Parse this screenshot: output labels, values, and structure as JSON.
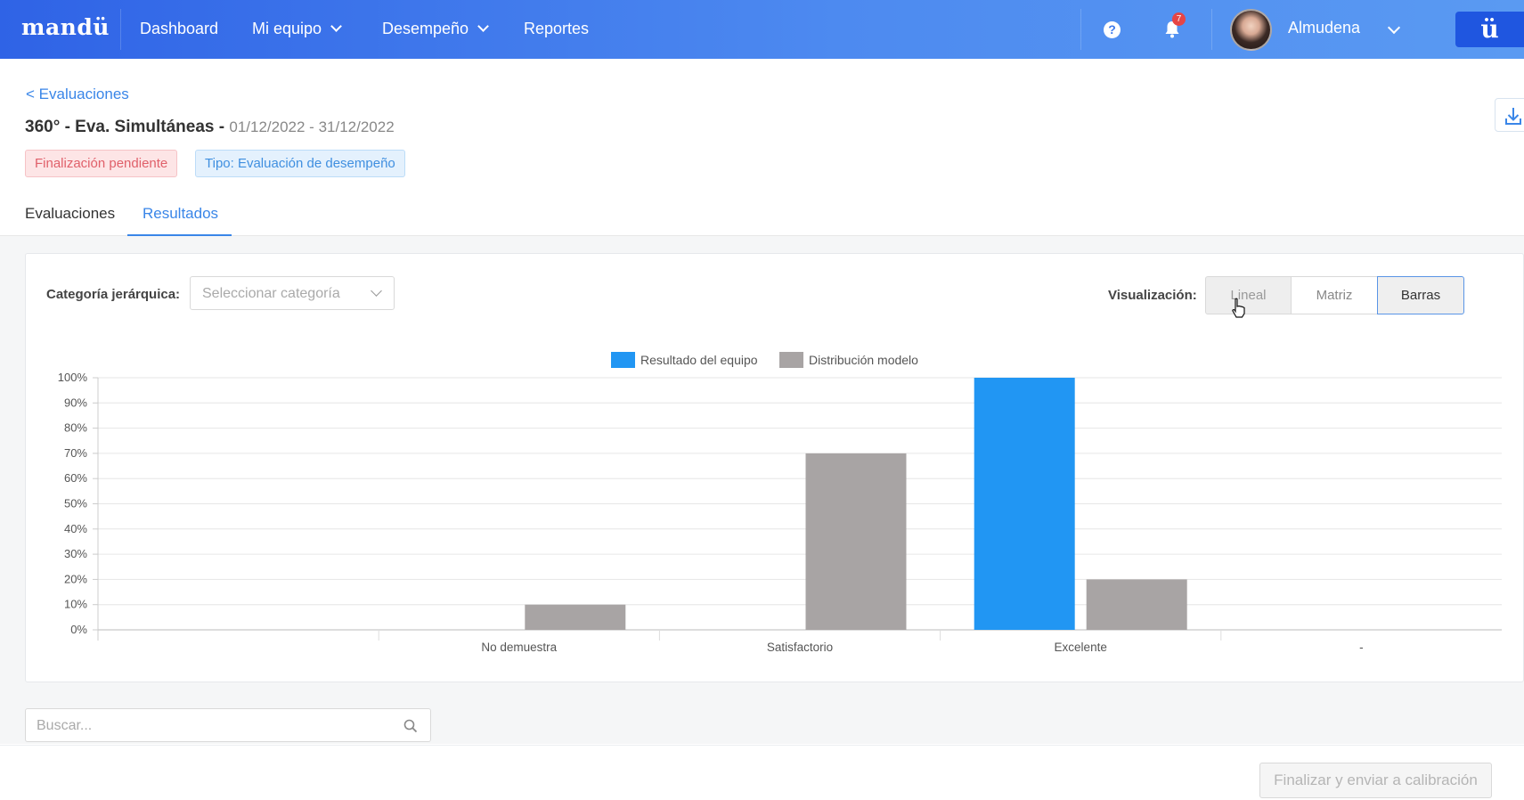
{
  "nav": {
    "brand": "mandü",
    "items": [
      "Dashboard",
      "Mi equipo",
      "Desempeño",
      "Reportes"
    ],
    "notifications_count": "7",
    "username": "Almudena",
    "app_button": "ü",
    "help_icon": "question-circle-icon",
    "bell_icon": "bell-icon",
    "gradient_start": "#2f63e6",
    "gradient_end": "#5a9af2"
  },
  "header": {
    "back_link": "< Evaluaciones",
    "title": "360° - Eva. Simultáneas -",
    "dates": "01/12/2022 - 31/12/2022",
    "badges": [
      "Finalización pendiente",
      "Tipo: Evaluación de desempeño"
    ],
    "download_icon": "download-icon"
  },
  "tabs": [
    {
      "label": "Evaluaciones",
      "active": false
    },
    {
      "label": "Resultados",
      "active": true
    }
  ],
  "filters": {
    "category_label": "Categoría jerárquica:",
    "category_placeholder": "Seleccionar categoría",
    "visualization_label": "Visualización:",
    "visualization_options": [
      "Lineal",
      "Matriz",
      "Barras"
    ],
    "selected_visualization": "Barras"
  },
  "chart_data": {
    "type": "bar",
    "categories": [
      "",
      "No demuestra",
      "Satisfactorio",
      "Excelente",
      "-"
    ],
    "series": [
      {
        "name": "Resultado del equipo",
        "color": "#2196f3",
        "values": [
          0,
          0,
          0,
          100,
          0
        ]
      },
      {
        "name": "Distribución modelo",
        "color": "#a8a4a4",
        "values": [
          0,
          10,
          70,
          20,
          0
        ]
      }
    ],
    "ylim": [
      0,
      100
    ],
    "yticks": [
      "0%",
      "10%",
      "20%",
      "30%",
      "40%",
      "50%",
      "60%",
      "70%",
      "80%",
      "90%",
      "100%"
    ],
    "grid": true,
    "legend_position": "top-center"
  },
  "search": {
    "placeholder": "Buscar...",
    "icon": "search-icon"
  },
  "footer": {
    "finalize_button": "Finalizar y enviar a calibración"
  }
}
